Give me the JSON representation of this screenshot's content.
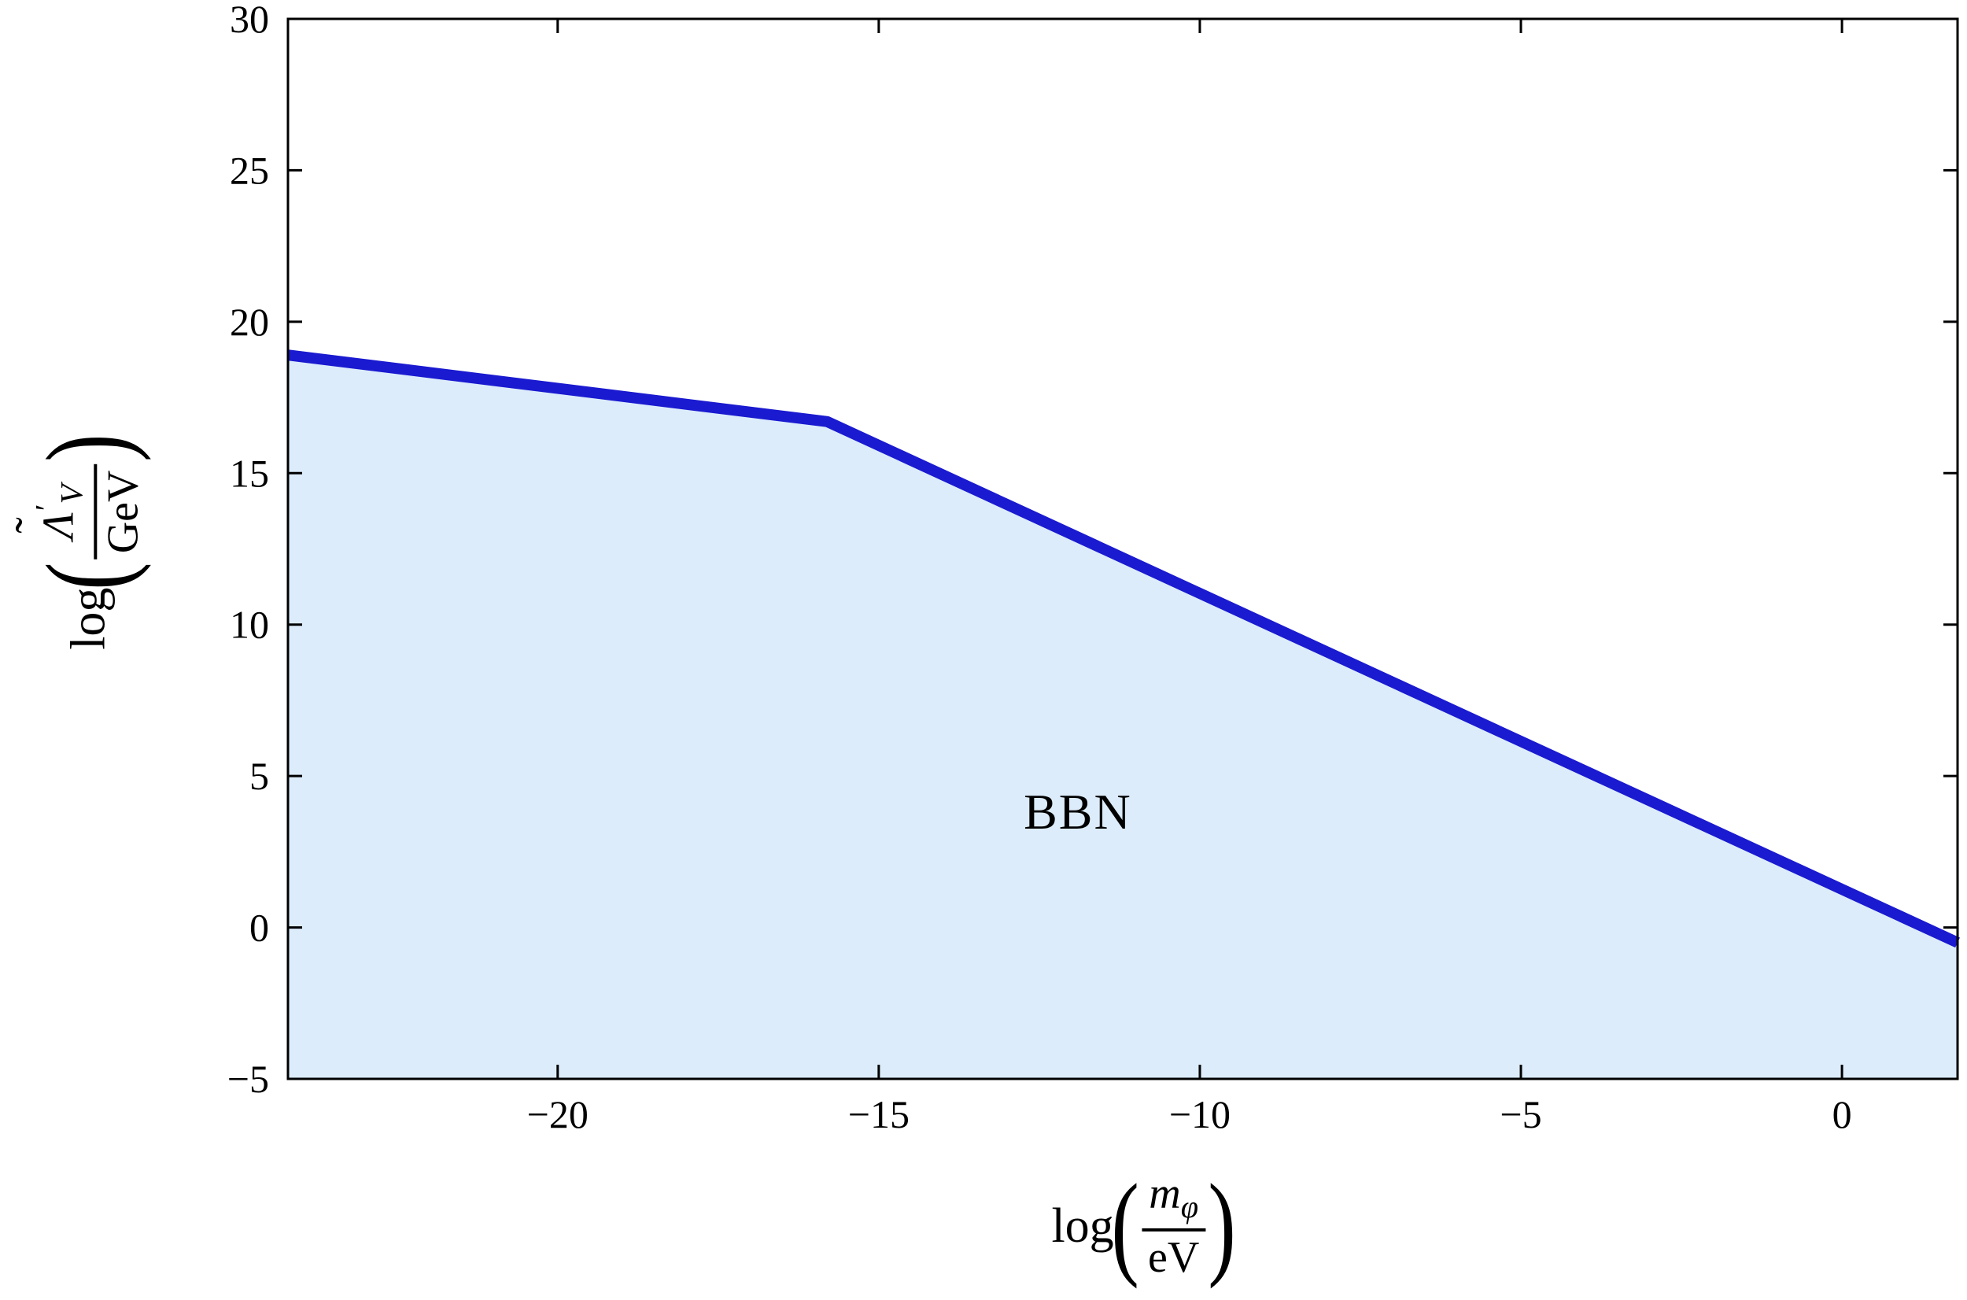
{
  "chart_data": {
    "type": "area",
    "title": "",
    "xlabel": "log(m_phi / eV)",
    "ylabel": "log(Lambda-tilde'_V / GeV)",
    "xlabel_parts": {
      "prefix": "log",
      "paren_open": "(",
      "paren_close": ")",
      "num_base": "m",
      "num_sub": "φ",
      "den": "eV"
    },
    "ylabel_parts": {
      "prefix": "log",
      "paren_open": "(",
      "paren_close": ")",
      "num_base": "Λ",
      "num_accent": "˜",
      "num_prime": "′",
      "num_sub": "V",
      "den": "GeV"
    },
    "xlim": [
      -24.2,
      1.8
    ],
    "ylim": [
      -5,
      30
    ],
    "x_ticks": [
      -20,
      -15,
      -10,
      -5,
      0
    ],
    "y_ticks": [
      -5,
      0,
      5,
      10,
      15,
      20,
      25,
      30
    ],
    "grid": false,
    "legend": false,
    "frame_color": "#000000",
    "series": [
      {
        "name": "BBN exclusion boundary",
        "x": [
          -24.2,
          -15.8,
          1.8
        ],
        "y": [
          18.9,
          16.7,
          -0.5
        ],
        "line_color": "#1a1ad0",
        "line_width": 14,
        "fill_color": "#dcecfb",
        "fill_to": -5
      }
    ],
    "annotations": [
      {
        "text": "BBN",
        "x": -11.9,
        "y": 3.8
      }
    ]
  }
}
